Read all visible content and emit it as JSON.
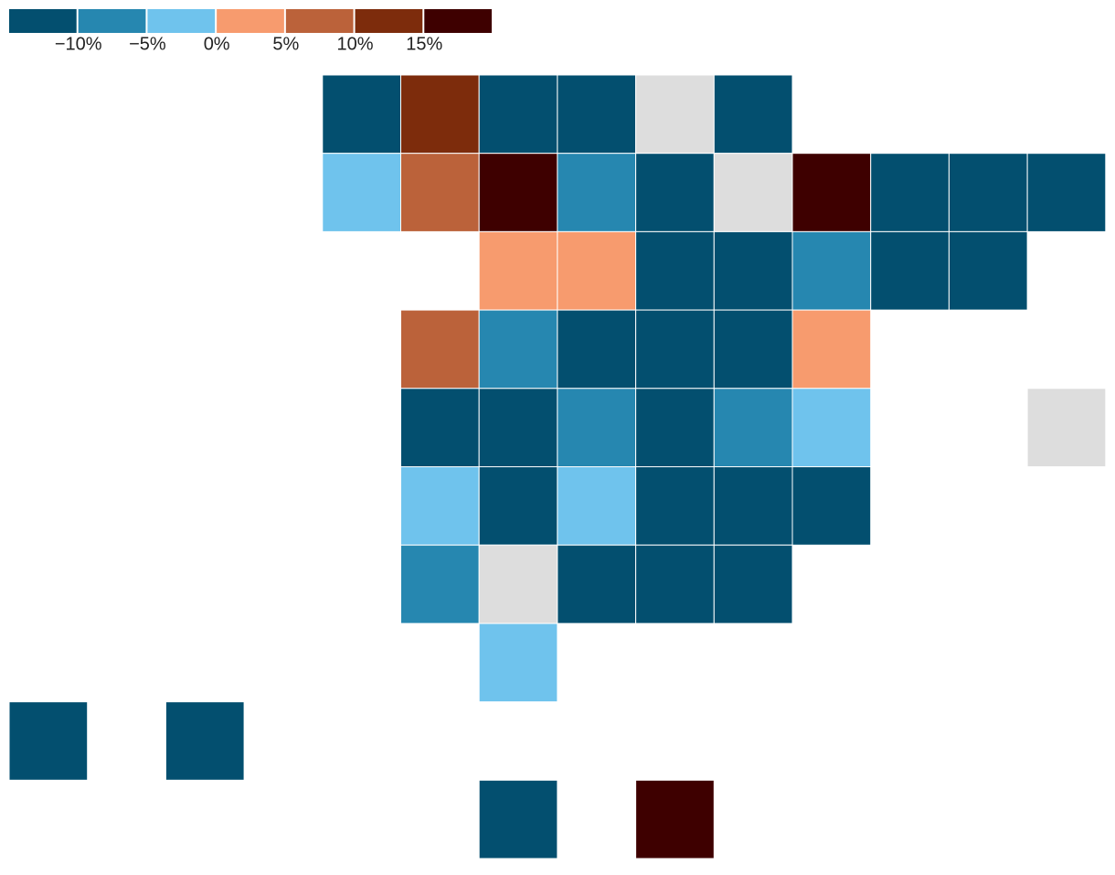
{
  "chart_data": {
    "type": "tilemap",
    "thresholds": [
      {
        "value": -10,
        "label": "−10%"
      },
      {
        "value": -5,
        "label": "−5%"
      },
      {
        "value": 0,
        "label": "0%"
      },
      {
        "value": 5,
        "label": "5%"
      },
      {
        "value": 10,
        "label": "10%"
      },
      {
        "value": 15,
        "label": "15%"
      }
    ],
    "colors": [
      "#034f6f",
      "#2687b0",
      "#6fc3ed",
      "#f79b6e",
      "#bb623a",
      "#7d2c0c",
      "#3e0000"
    ],
    "missing_color": "#dddddd",
    "values": [
      -12,
      12.5,
      -12,
      -12,
      null,
      -12,
      -2.5,
      7.5,
      17,
      -7.5,
      -12,
      null,
      17,
      -12,
      -12,
      -12,
      2.5,
      2.5,
      -12,
      -12,
      -7.5,
      -12,
      -12,
      7.5,
      -7.5,
      -12,
      -12,
      -12,
      2.5,
      -12,
      -12,
      -7.5,
      -12,
      -7.5,
      -2.5,
      null,
      -2.5,
      -12,
      -2.5,
      -12,
      -12,
      -12,
      -7.5,
      null,
      -12,
      -12,
      -12,
      -2.5,
      -12,
      -12,
      -12,
      17
    ]
  }
}
